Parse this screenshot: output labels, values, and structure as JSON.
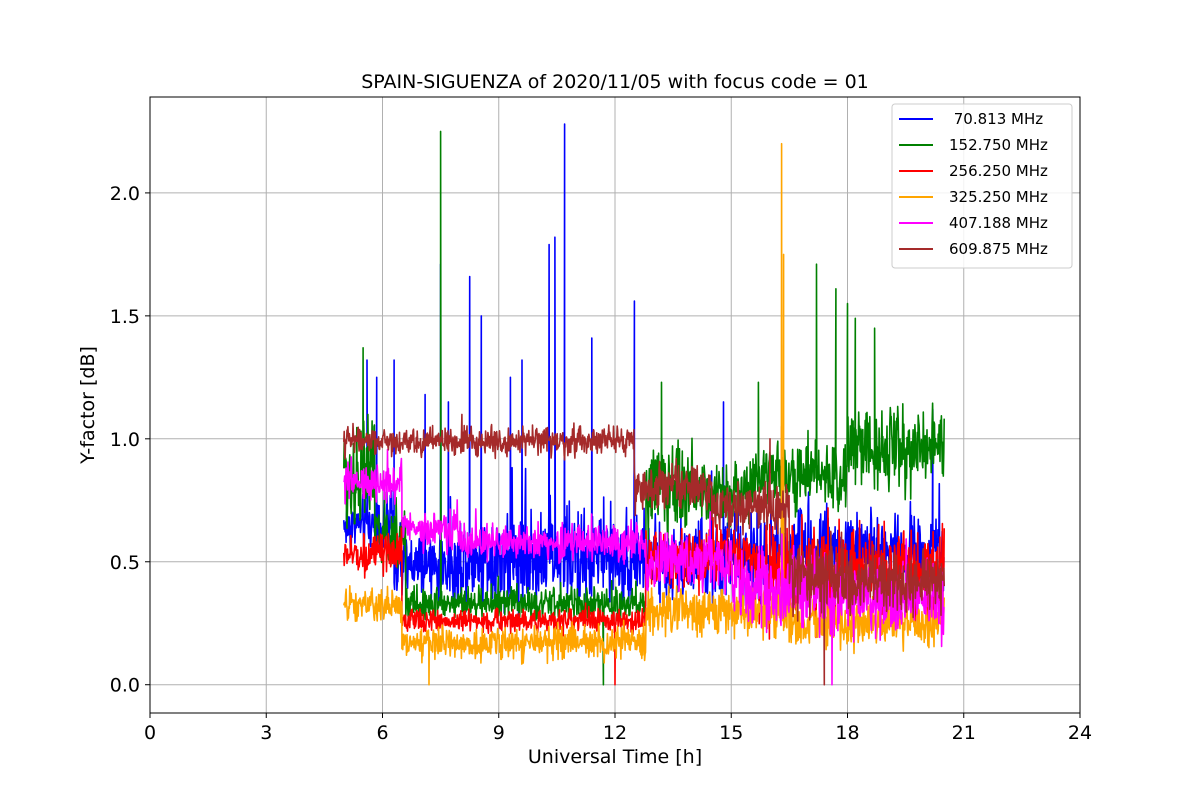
{
  "chart_data": {
    "type": "line",
    "title": "SPAIN-SIGUENZA of 2020/11/05 with focus code = 01",
    "xlabel": "Universal Time [h]",
    "ylabel": "Y-factor [dB]",
    "xlim": [
      0,
      24
    ],
    "ylim": [
      -0.115,
      2.39
    ],
    "x_ticks": [
      0,
      3,
      6,
      9,
      12,
      15,
      18,
      21,
      24
    ],
    "x_tick_labels": [
      "0",
      "3",
      "6",
      "9",
      "12",
      "15",
      "18",
      "21",
      "24"
    ],
    "y_ticks": [
      0.0,
      0.5,
      1.0,
      1.5,
      2.0
    ],
    "y_tick_labels": [
      "0.0",
      "0.5",
      "1.0",
      "1.5",
      "2.0"
    ],
    "grid": true,
    "legend_position": "top-right",
    "series": [
      {
        "name": " 70.813 MHz",
        "color": "#0000ff",
        "segments": [
          {
            "t0": 5.0,
            "t1": 6.3,
            "base": 0.65,
            "noise": 0.12
          },
          {
            "t0": 6.3,
            "t1": 8.0,
            "base": 0.48,
            "noise": 0.14
          },
          {
            "t0": 8.0,
            "t1": 12.8,
            "base": 0.52,
            "noise": 0.2
          },
          {
            "t0": 12.8,
            "t1": 16.0,
            "base": 0.5,
            "noise": 0.18
          },
          {
            "t0": 16.0,
            "t1": 20.5,
            "base": 0.55,
            "noise": 0.18
          }
        ],
        "spikes": [
          [
            5.6,
            1.32
          ],
          [
            5.85,
            1.25
          ],
          [
            6.3,
            1.32
          ],
          [
            7.1,
            1.18
          ],
          [
            7.5,
            1.71
          ],
          [
            7.7,
            1.15
          ],
          [
            8.25,
            1.66
          ],
          [
            8.55,
            1.5
          ],
          [
            9.3,
            1.25
          ],
          [
            9.6,
            1.32
          ],
          [
            10.3,
            1.79
          ],
          [
            10.45,
            1.82
          ],
          [
            10.7,
            2.28
          ],
          [
            11.4,
            1.41
          ],
          [
            12.5,
            1.56
          ],
          [
            14.8,
            1.15
          ],
          [
            20.2,
            1.12
          ]
        ]
      },
      {
        "name": "152.750 MHz",
        "color": "#008000",
        "segments": [
          {
            "t0": 5.0,
            "t1": 5.8,
            "base": 0.85,
            "noise": 0.25
          },
          {
            "t0": 5.8,
            "t1": 6.6,
            "base": 0.6,
            "noise": 0.15
          },
          {
            "t0": 6.6,
            "t1": 12.8,
            "base": 0.33,
            "noise": 0.07
          },
          {
            "t0": 12.8,
            "t1": 14.0,
            "base": 0.8,
            "noise": 0.2
          },
          {
            "t0": 14.0,
            "t1": 15.6,
            "base": 0.78,
            "noise": 0.12
          },
          {
            "t0": 15.6,
            "t1": 18.0,
            "base": 0.85,
            "noise": 0.15
          },
          {
            "t0": 18.0,
            "t1": 20.5,
            "base": 0.97,
            "noise": 0.17
          }
        ],
        "spikes": [
          [
            5.5,
            1.37
          ],
          [
            7.5,
            2.25
          ],
          [
            13.2,
            1.23
          ],
          [
            15.7,
            1.23
          ],
          [
            17.2,
            1.71
          ],
          [
            17.7,
            1.61
          ],
          [
            18.0,
            1.55
          ],
          [
            18.2,
            1.49
          ],
          [
            18.7,
            1.45
          ],
          [
            11.7,
            0.0
          ]
        ]
      },
      {
        "name": "256.250 MHz",
        "color": "#ff0000",
        "segments": [
          {
            "t0": 5.0,
            "t1": 6.5,
            "base": 0.53,
            "noise": 0.08
          },
          {
            "t0": 6.5,
            "t1": 12.8,
            "base": 0.26,
            "noise": 0.05
          },
          {
            "t0": 12.8,
            "t1": 15.6,
            "base": 0.52,
            "noise": 0.12
          },
          {
            "t0": 15.6,
            "t1": 20.5,
            "base": 0.45,
            "noise": 0.2
          }
        ],
        "spikes": [
          [
            12.0,
            0.0
          ],
          [
            16.3,
            1.05
          ]
        ]
      },
      {
        "name": "325.250 MHz",
        "color": "#ffa500",
        "segments": [
          {
            "t0": 5.0,
            "t1": 6.5,
            "base": 0.32,
            "noise": 0.07
          },
          {
            "t0": 6.5,
            "t1": 12.8,
            "base": 0.17,
            "noise": 0.07
          },
          {
            "t0": 12.8,
            "t1": 16.5,
            "base": 0.3,
            "noise": 0.1
          },
          {
            "t0": 16.5,
            "t1": 20.5,
            "base": 0.25,
            "noise": 0.1
          }
        ],
        "spikes": [
          [
            7.2,
            0.0
          ],
          [
            16.3,
            2.2
          ],
          [
            16.35,
            1.75
          ]
        ]
      },
      {
        "name": "407.188 MHz",
        "color": "#ff00ff",
        "segments": [
          {
            "t0": 5.0,
            "t1": 6.5,
            "base": 0.82,
            "noise": 0.08
          },
          {
            "t0": 6.5,
            "t1": 8.0,
            "base": 0.63,
            "noise": 0.08
          },
          {
            "t0": 8.0,
            "t1": 12.8,
            "base": 0.58,
            "noise": 0.08
          },
          {
            "t0": 12.8,
            "t1": 15.0,
            "base": 0.5,
            "noise": 0.12
          },
          {
            "t0": 15.0,
            "t1": 17.5,
            "base": 0.4,
            "noise": 0.18
          },
          {
            "t0": 17.5,
            "t1": 20.5,
            "base": 0.35,
            "noise": 0.15
          }
        ],
        "spikes": [
          [
            17.6,
            0.0
          ]
        ]
      },
      {
        "name": "609.875 MHz",
        "color": "#a52a2a",
        "segments": [
          {
            "t0": 5.0,
            "t1": 12.5,
            "base": 0.99,
            "noise": 0.06
          },
          {
            "t0": 12.5,
            "t1": 14.5,
            "base": 0.8,
            "noise": 0.1
          },
          {
            "t0": 14.5,
            "t1": 16.5,
            "base": 0.72,
            "noise": 0.1
          },
          {
            "t0": 16.5,
            "t1": 18.0,
            "base": 0.45,
            "noise": 0.15
          },
          {
            "t0": 18.0,
            "t1": 20.5,
            "base": 0.42,
            "noise": 0.12
          }
        ],
        "spikes": [
          [
            17.4,
            0.0
          ],
          [
            16.0,
            1.0
          ]
        ]
      }
    ]
  }
}
